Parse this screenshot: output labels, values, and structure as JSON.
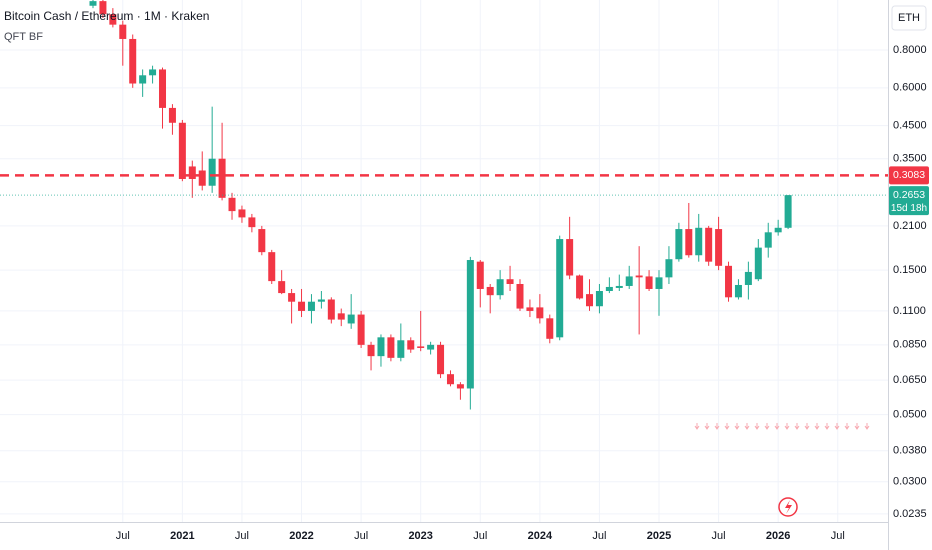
{
  "chart_data": {
    "type": "candlestick",
    "title": "Bitcoin Cash / Ethereum · 1M · Kraken",
    "subtitle": "QFT BF",
    "currency": "ETH",
    "log_scale": true,
    "grid": true,
    "up_color": "#22ab94",
    "down_color": "#f23645",
    "categories": [
      "2020-04",
      "2020-05",
      "2020-06",
      "2020-07",
      "2020-08",
      "2020-09",
      "2020-10",
      "2020-11",
      "2020-12",
      "2021-01",
      "2021-02",
      "2021-03",
      "2021-04",
      "2021-05",
      "2021-06",
      "2021-07",
      "2021-08",
      "2021-09",
      "2021-10",
      "2021-11",
      "2021-12",
      "2022-01",
      "2022-02",
      "2022-03",
      "2022-04",
      "2022-05",
      "2022-06",
      "2022-07",
      "2022-08",
      "2022-09",
      "2022-10",
      "2022-11",
      "2022-12",
      "2023-01",
      "2023-02",
      "2023-03",
      "2023-04",
      "2023-05",
      "2023-06",
      "2023-07",
      "2023-08",
      "2023-09",
      "2023-10",
      "2023-11",
      "2023-12",
      "2024-01",
      "2024-02",
      "2024-03",
      "2024-04",
      "2024-05",
      "2024-06",
      "2024-07",
      "2024-08",
      "2024-09",
      "2024-10",
      "2024-11",
      "2024-12",
      "2025-01",
      "2025-02",
      "2025-03",
      "2025-04",
      "2025-05",
      "2025-06",
      "2025-07",
      "2025-08",
      "2025-09",
      "2025-10",
      "2025-11",
      "2025-12",
      "2026-01",
      "2026-02"
    ],
    "open": [
      1.12,
      1.16,
      1.05,
      0.97,
      0.87,
      0.62,
      0.66,
      0.69,
      0.515,
      0.46,
      0.33,
      0.32,
      0.285,
      0.35,
      0.26,
      0.238,
      0.224,
      0.205,
      0.172,
      0.138,
      0.126,
      0.118,
      0.11,
      0.118,
      0.12,
      0.108,
      0.1,
      0.107,
      0.085,
      0.078,
      0.09,
      0.077,
      0.088,
      0.084,
      0.082,
      0.085,
      0.068,
      0.063,
      0.061,
      0.16,
      0.132,
      0.124,
      0.14,
      0.135,
      0.113,
      0.113,
      0.104,
      0.09,
      0.19,
      0.144,
      0.125,
      0.114,
      0.128,
      0.131,
      0.133,
      0.144,
      0.143,
      0.13,
      0.142,
      0.163,
      0.205,
      0.168,
      0.207,
      0.205,
      0.155,
      0.122,
      0.134,
      0.14,
      0.178,
      0.2,
      0.207
    ],
    "high": [
      1.17,
      1.17,
      1.1,
      1.0,
      0.9,
      0.69,
      0.71,
      0.7,
      0.53,
      0.47,
      0.345,
      0.37,
      0.52,
      0.46,
      0.27,
      0.245,
      0.23,
      0.21,
      0.175,
      0.15,
      0.13,
      0.13,
      0.125,
      0.128,
      0.122,
      0.112,
      0.125,
      0.11,
      0.087,
      0.092,
      0.092,
      0.1,
      0.09,
      0.11,
      0.087,
      0.087,
      0.07,
      0.064,
      0.166,
      0.162,
      0.135,
      0.15,
      0.155,
      0.14,
      0.12,
      0.125,
      0.107,
      0.195,
      0.225,
      0.145,
      0.14,
      0.135,
      0.142,
      0.145,
      0.155,
      0.18,
      0.15,
      0.15,
      0.18,
      0.215,
      0.25,
      0.23,
      0.21,
      0.225,
      0.16,
      0.14,
      0.16,
      0.19,
      0.215,
      0.22,
      0.2653
    ],
    "low": [
      1.1,
      1.02,
      0.95,
      0.71,
      0.6,
      0.56,
      0.62,
      0.44,
      0.42,
      0.295,
      0.26,
      0.275,
      0.27,
      0.255,
      0.22,
      0.215,
      0.2,
      0.168,
      0.135,
      0.125,
      0.1,
      0.105,
      0.1,
      0.112,
      0.1,
      0.098,
      0.096,
      0.083,
      0.07,
      0.072,
      0.075,
      0.075,
      0.08,
      0.081,
      0.079,
      0.066,
      0.062,
      0.056,
      0.052,
      0.113,
      0.108,
      0.12,
      0.128,
      0.11,
      0.105,
      0.1,
      0.086,
      0.088,
      0.14,
      0.12,
      0.11,
      0.108,
      0.126,
      0.128,
      0.13,
      0.092,
      0.128,
      0.106,
      0.135,
      0.16,
      0.165,
      0.16,
      0.155,
      0.15,
      0.118,
      0.12,
      0.12,
      0.138,
      0.165,
      0.195,
      0.205
    ],
    "close": [
      1.16,
      1.05,
      0.97,
      0.87,
      0.62,
      0.66,
      0.69,
      0.515,
      0.46,
      0.3,
      0.3,
      0.285,
      0.35,
      0.26,
      0.235,
      0.224,
      0.208,
      0.172,
      0.138,
      0.126,
      0.118,
      0.11,
      0.118,
      0.12,
      0.103,
      0.103,
      0.107,
      0.085,
      0.078,
      0.09,
      0.077,
      0.088,
      0.082,
      0.083,
      0.085,
      0.068,
      0.063,
      0.061,
      0.162,
      0.13,
      0.124,
      0.14,
      0.135,
      0.112,
      0.11,
      0.104,
      0.089,
      0.19,
      0.144,
      0.121,
      0.114,
      0.128,
      0.132,
      0.133,
      0.143,
      0.142,
      0.13,
      0.142,
      0.163,
      0.205,
      0.168,
      0.207,
      0.16,
      0.155,
      0.122,
      0.134,
      0.148,
      0.178,
      0.2,
      0.207,
      0.2653
    ],
    "ylim": [
      0.0221,
      1.17
    ],
    "yticks": [
      {
        "value": 0.8,
        "label": "0.8000"
      },
      {
        "value": 0.6,
        "label": "0.6000"
      },
      {
        "value": 0.45,
        "label": "0.4500"
      },
      {
        "value": 0.35,
        "label": "0.3500"
      },
      {
        "value": 0.21,
        "label": "0.2100"
      },
      {
        "value": 0.15,
        "label": "0.1500"
      },
      {
        "value": 0.11,
        "label": "0.1100"
      },
      {
        "value": 0.085,
        "label": "0.0850"
      },
      {
        "value": 0.065,
        "label": "0.0650"
      },
      {
        "value": 0.05,
        "label": "0.0500"
      },
      {
        "value": 0.038,
        "label": "0.0380"
      },
      {
        "value": 0.03,
        "label": "0.0300"
      },
      {
        "value": 0.0235,
        "label": "0.0235"
      }
    ],
    "xticks": [
      {
        "value": "2020-07",
        "label": "Jul"
      },
      {
        "value": "2021-01",
        "label": "2021"
      },
      {
        "value": "2021-07",
        "label": "Jul"
      },
      {
        "value": "2022-01",
        "label": "2022"
      },
      {
        "value": "2022-07",
        "label": "Jul"
      },
      {
        "value": "2023-01",
        "label": "2023"
      },
      {
        "value": "2023-07",
        "label": "Jul"
      },
      {
        "value": "2024-01",
        "label": "2024"
      },
      {
        "value": "2024-07",
        "label": "Jul"
      },
      {
        "value": "2025-01",
        "label": "2025"
      },
      {
        "value": "2025-07",
        "label": "Jul"
      },
      {
        "value": "2026-01",
        "label": "2026"
      },
      {
        "value": "2026-07",
        "label": "Jul"
      }
    ],
    "hline": {
      "value": 0.3083,
      "color": "#f23645"
    },
    "countdown": "15d 18h"
  }
}
